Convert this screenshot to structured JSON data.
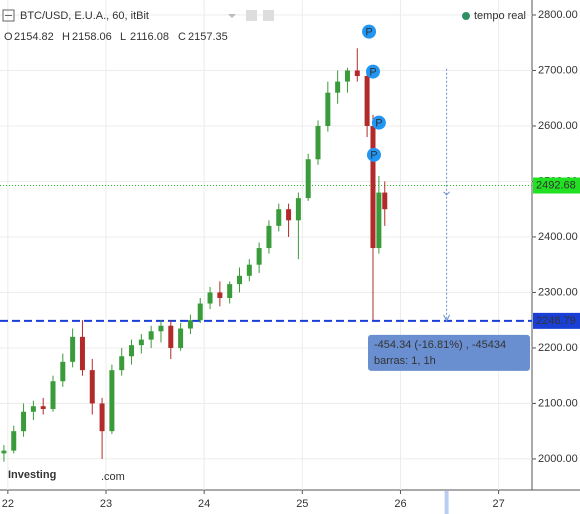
{
  "chart_data": {
    "type": "candlestick",
    "title": "BTC/USD, E.U.A., 60, itBit",
    "ohlc": [
      {
        "label": "O",
        "value": 2154.82
      },
      {
        "label": "H",
        "value": 2158.06
      },
      {
        "label": "L",
        "value": 2116.08
      },
      {
        "label": "C",
        "value": 2157.35
      }
    ],
    "realtime": "tempo real",
    "logo": {
      "name": "Investing",
      "suffix": ".com"
    },
    "up_color": "#3a9b3a",
    "down_color": "#b22a2a",
    "grid": true,
    "xlim": [
      21.92,
      27.34
    ],
    "ylim": [
      1944,
      2827
    ],
    "xticks": [
      22,
      23,
      24,
      25,
      26,
      27
    ],
    "yticks": [
      {
        "value": 2000,
        "label": "2000.00"
      },
      {
        "value": 2100,
        "label": "2100.00"
      },
      {
        "value": 2200,
        "label": "2200.00"
      },
      {
        "value": 2300,
        "label": "2300.00"
      },
      {
        "value": 2400,
        "label": "2400.00"
      },
      {
        "value": 2500,
        "label": "2500.00"
      },
      {
        "value": 2600,
        "label": "2600.00"
      },
      {
        "value": 2700,
        "label": "2700.00"
      },
      {
        "value": 2800,
        "label": "2800.00"
      }
    ],
    "x": [
      21.96,
      22.06,
      22.16,
      22.26,
      22.36,
      22.46,
      22.56,
      22.66,
      22.76,
      22.86,
      22.96,
      23.06,
      23.16,
      23.26,
      23.36,
      23.46,
      23.56,
      23.66,
      23.76,
      23.86,
      23.96,
      24.06,
      24.16,
      24.26,
      24.36,
      24.46,
      24.56,
      24.66,
      24.76,
      24.86,
      24.96,
      25.06,
      25.16,
      25.26,
      25.36,
      25.46,
      25.56,
      25.66,
      25.72,
      25.78,
      25.84
    ],
    "open": [
      2010,
      2015,
      2050,
      2085,
      2095,
      2090,
      2140,
      2175,
      2220,
      2160,
      2100,
      2050,
      2160,
      2185,
      2205,
      2215,
      2230,
      2240,
      2200,
      2235,
      2250,
      2280,
      2300,
      2290,
      2315,
      2330,
      2350,
      2380,
      2420,
      2450,
      2430,
      2470,
      2540,
      2600,
      2660,
      2680,
      2700,
      2690,
      2600,
      2380,
      2480
    ],
    "high": [
      2025,
      2060,
      2100,
      2105,
      2110,
      2150,
      2190,
      2235,
      2250,
      2180,
      2110,
      2170,
      2200,
      2215,
      2225,
      2240,
      2250,
      2250,
      2245,
      2260,
      2290,
      2310,
      2320,
      2320,
      2345,
      2360,
      2390,
      2430,
      2460,
      2460,
      2480,
      2550,
      2610,
      2680,
      2700,
      2705,
      2740,
      2700,
      2620,
      2510,
      2500
    ],
    "low": [
      1995,
      2010,
      2040,
      2070,
      2080,
      2085,
      2130,
      2165,
      2150,
      2080,
      2000,
      2045,
      2150,
      2170,
      2190,
      2200,
      2210,
      2180,
      2195,
      2225,
      2245,
      2270,
      2275,
      2280,
      2300,
      2320,
      2335,
      2370,
      2410,
      2400,
      2360,
      2465,
      2530,
      2590,
      2640,
      2660,
      2680,
      2580,
      2250,
      2370,
      2420
    ],
    "close": [
      2015,
      2050,
      2085,
      2095,
      2090,
      2140,
      2175,
      2220,
      2160,
      2100,
      2050,
      2160,
      2185,
      2205,
      2215,
      2230,
      2240,
      2200,
      2235,
      2250,
      2280,
      2300,
      2290,
      2315,
      2330,
      2350,
      2380,
      2420,
      2450,
      2430,
      2470,
      2540,
      2600,
      2660,
      2680,
      2700,
      2690,
      2600,
      2380,
      2480,
      2450
    ],
    "markers": [
      {
        "label": "P",
        "x": 25.68,
        "y": 2770
      },
      {
        "label": "P",
        "x": 25.72,
        "y": 2698
      },
      {
        "label": "P",
        "x": 25.78,
        "y": 2606
      },
      {
        "label": "P",
        "x": 25.73,
        "y": 2548
      }
    ],
    "price_lines": [
      {
        "value": 2492.68,
        "color": "#22c222",
        "style": "dotted"
      },
      {
        "value": 2248.79,
        "color": "#1a3fd6",
        "style": "dashed"
      }
    ],
    "measure": {
      "x": 26.47,
      "from": 2703.13,
      "to": 2248.79,
      "text": "-454.34 (-16.81%) , -45434",
      "bars": "barras: 1, 1h"
    }
  }
}
